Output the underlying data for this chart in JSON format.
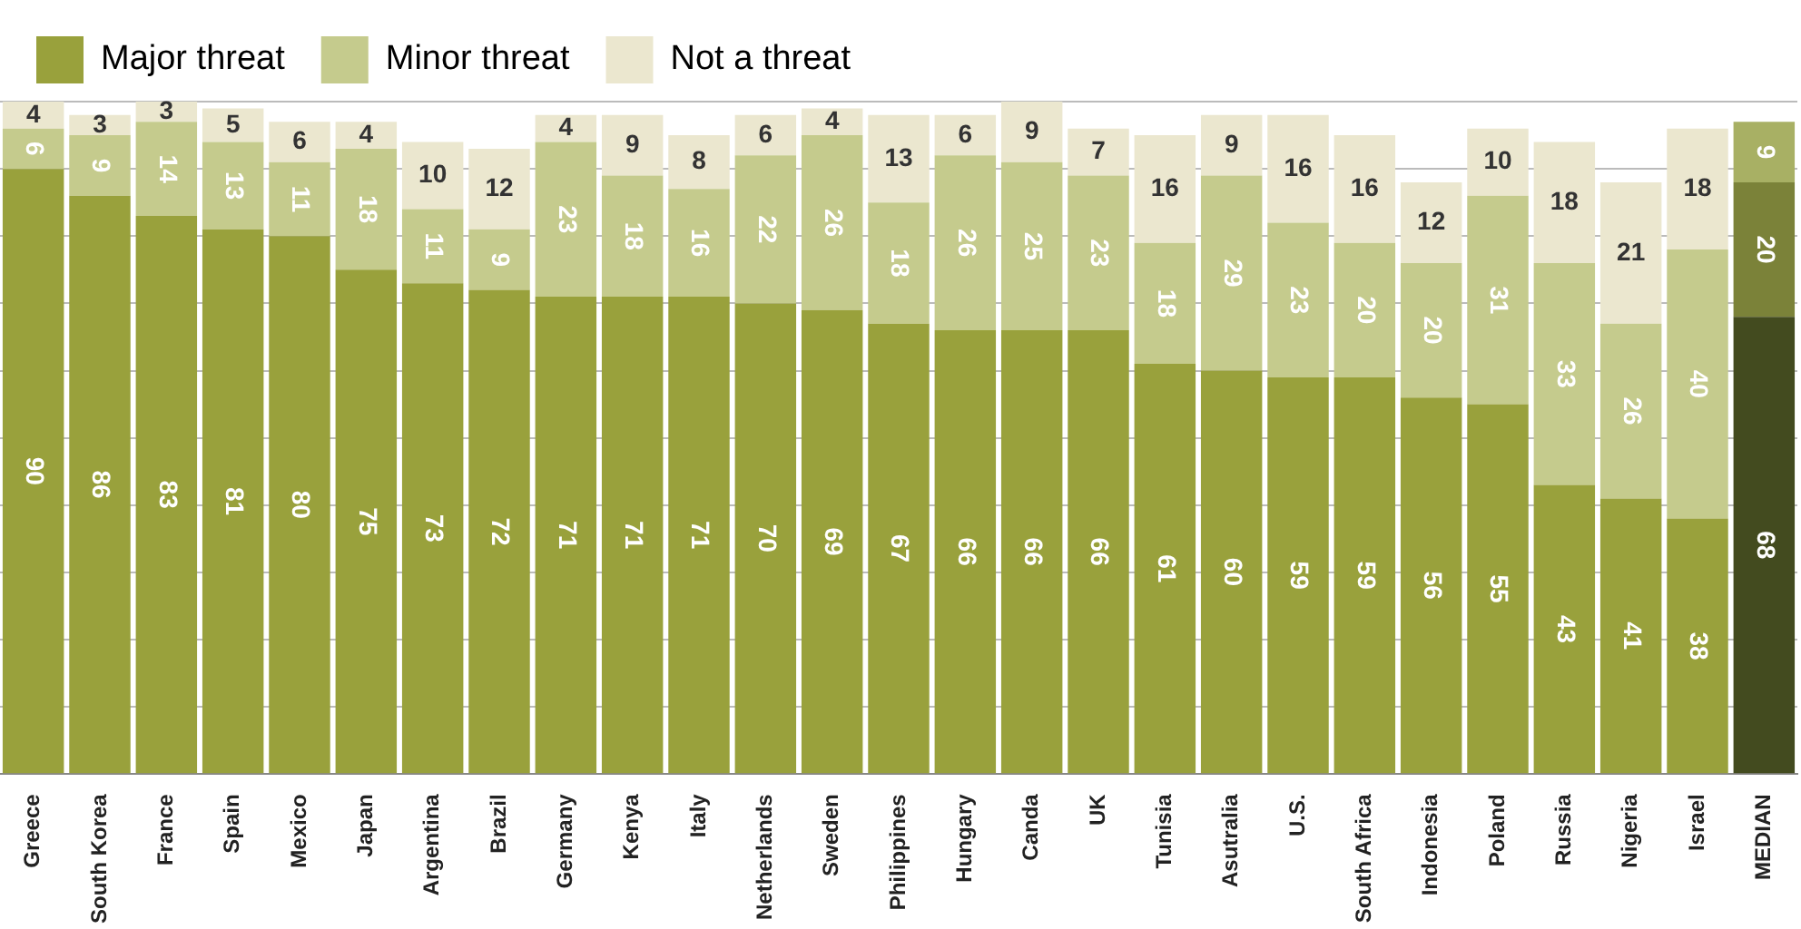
{
  "chart_data": {
    "type": "bar",
    "stacked": true,
    "categories": [
      "Greece",
      "South Korea",
      "France",
      "Spain",
      "Mexico",
      "Japan",
      "Argentina",
      "Brazil",
      "Germany",
      "Kenya",
      "Italy",
      "Netherlands",
      "Sweden",
      "Philippines",
      "Hungary",
      "Canda",
      "UK",
      "Tunisia",
      "Asutralia",
      "U.S.",
      "South Africa",
      "Indonesia",
      "Poland",
      "Russia",
      "Nigeria",
      "Israel",
      "MEDIAN"
    ],
    "series": [
      {
        "name": "Major threat",
        "color": "#99a13c",
        "colors": [
          "#99a13c",
          "#99a13c",
          "#99a13c",
          "#99a13c",
          "#99a13c",
          "#99a13c",
          "#99a13c",
          "#99a13c",
          "#99a13c",
          "#99a13c",
          "#99a13c",
          "#99a13c",
          "#99a13c",
          "#99a13c",
          "#99a13c",
          "#99a13c",
          "#99a13c",
          "#99a13c",
          "#99a13c",
          "#99a13c",
          "#99a13c",
          "#99a13c",
          "#99a13c",
          "#99a13c",
          "#99a13c",
          "#99a13c",
          "#434b1f"
        ],
        "values": [
          90,
          86,
          83,
          81,
          80,
          75,
          73,
          72,
          71,
          71,
          71,
          70,
          69,
          67,
          66,
          66,
          66,
          61,
          60,
          59,
          59,
          56,
          55,
          43,
          41,
          38,
          68
        ]
      },
      {
        "name": "Minor threat",
        "color": "#c5cb8d",
        "colors": [
          "#c5cb8d",
          "#c5cb8d",
          "#c5cb8d",
          "#c5cb8d",
          "#c5cb8d",
          "#c5cb8d",
          "#c5cb8d",
          "#c5cb8d",
          "#c5cb8d",
          "#c5cb8d",
          "#c5cb8d",
          "#c5cb8d",
          "#c5cb8d",
          "#c5cb8d",
          "#c5cb8d",
          "#c5cb8d",
          "#c5cb8d",
          "#c5cb8d",
          "#c5cb8d",
          "#c5cb8d",
          "#c5cb8d",
          "#c5cb8d",
          "#c5cb8d",
          "#c5cb8d",
          "#c5cb8d",
          "#c5cb8d",
          "#7b8239"
        ],
        "values": [
          6,
          9,
          14,
          13,
          11,
          18,
          11,
          9,
          23,
          18,
          16,
          22,
          26,
          18,
          26,
          25,
          23,
          18,
          29,
          23,
          20,
          20,
          31,
          33,
          26,
          40,
          20
        ]
      },
      {
        "name": "Not a threat",
        "color": "#ebe7cf",
        "colors": [
          "#ebe7cf",
          "#ebe7cf",
          "#ebe7cf",
          "#ebe7cf",
          "#ebe7cf",
          "#ebe7cf",
          "#ebe7cf",
          "#ebe7cf",
          "#ebe7cf",
          "#ebe7cf",
          "#ebe7cf",
          "#ebe7cf",
          "#ebe7cf",
          "#ebe7cf",
          "#ebe7cf",
          "#ebe7cf",
          "#ebe7cf",
          "#ebe7cf",
          "#ebe7cf",
          "#ebe7cf",
          "#ebe7cf",
          "#ebe7cf",
          "#ebe7cf",
          "#ebe7cf",
          "#ebe7cf",
          "#ebe7cf",
          "#a8b064"
        ],
        "values": [
          4,
          3,
          3,
          5,
          6,
          4,
          10,
          12,
          4,
          9,
          8,
          6,
          4,
          13,
          6,
          9,
          7,
          16,
          9,
          16,
          16,
          12,
          10,
          18,
          21,
          18,
          9
        ]
      }
    ],
    "ylim": [
      0,
      100
    ],
    "yticks": [
      {
        "value": 0,
        "label": null
      },
      {
        "value": 10,
        "label": null
      },
      {
        "value": 20,
        "label": null
      },
      {
        "value": 30,
        "label": null
      },
      {
        "value": 40,
        "label": null
      },
      {
        "value": 50,
        "label": null
      },
      {
        "value": 60,
        "label": null
      },
      {
        "value": 70,
        "label": null
      },
      {
        "value": 80,
        "label": null
      },
      {
        "value": 90,
        "label": null
      },
      {
        "value": 100,
        "label": null
      }
    ],
    "tick_labels": "x",
    "grid": "y",
    "legend": "top left",
    "data_labels": true
  }
}
